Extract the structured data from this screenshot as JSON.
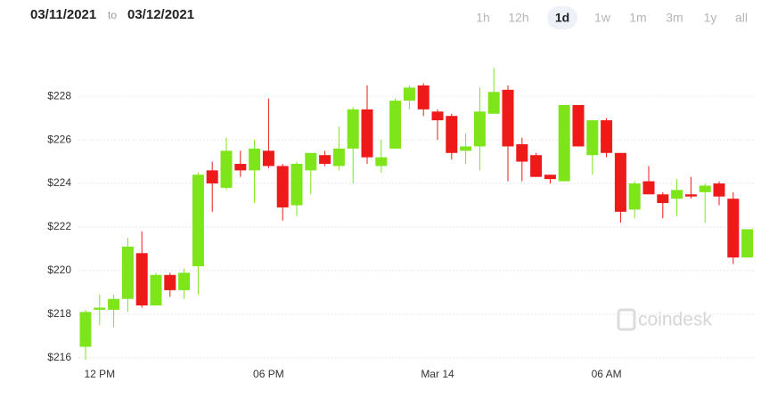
{
  "header": {
    "date_from": "03/11/2021",
    "date_sep": "to",
    "date_to": "03/12/2021",
    "ranges": [
      "1h",
      "12h",
      "1d",
      "1w",
      "1m",
      "3m",
      "1y",
      "all"
    ],
    "selected_range": 2
  },
  "watermark": "coindesk",
  "chart_data": {
    "type": "candlestick",
    "categories": [
      null,
      "12 PM",
      null,
      null,
      null,
      null,
      null,
      null,
      null,
      null,
      null,
      null,
      null,
      "06 PM",
      null,
      null,
      null,
      null,
      null,
      null,
      null,
      null,
      null,
      null,
      null,
      "Mar 14",
      null,
      null,
      null,
      null,
      null,
      null,
      null,
      null,
      null,
      null,
      null,
      "06 AM",
      null,
      null,
      null,
      null,
      null,
      null,
      null,
      null,
      null,
      null
    ],
    "open": [
      216.5,
      218.2,
      218.2,
      218.7,
      220.8,
      218.4,
      219.8,
      219.1,
      220.2,
      224.6,
      223.8,
      224.9,
      224.6,
      225.5,
      224.8,
      223.0,
      224.6,
      225.3,
      224.8,
      225.6,
      227.4,
      224.8,
      225.6,
      227.8,
      228.5,
      227.3,
      227.1,
      225.5,
      225.7,
      227.2,
      228.3,
      225.8,
      225.3,
      224.4,
      224.1,
      227.6,
      225.3,
      226.9,
      225.4,
      222.8,
      224.1,
      223.5,
      223.3,
      223.5,
      223.6,
      224.0,
      223.3,
      220.6
    ],
    "high": [
      218.2,
      218.9,
      218.9,
      221.5,
      221.8,
      219.9,
      219.9,
      220.1,
      224.5,
      225.0,
      226.1,
      225.5,
      226.0,
      227.9,
      224.9,
      225.0,
      225.4,
      225.5,
      226.6,
      227.5,
      228.5,
      226.0,
      227.9,
      228.5,
      228.6,
      227.4,
      227.2,
      226.3,
      228.4,
      229.3,
      228.5,
      226.1,
      225.4,
      224.4,
      227.6,
      227.6,
      226.9,
      227.0,
      225.4,
      224.1,
      224.8,
      223.6,
      224.2,
      224.3,
      224.0,
      224.1,
      223.6,
      221.9
    ],
    "low": [
      215.9,
      217.5,
      217.4,
      218.1,
      218.3,
      218.4,
      218.8,
      218.7,
      218.9,
      222.7,
      223.7,
      224.3,
      223.1,
      224.7,
      222.3,
      222.5,
      223.5,
      224.8,
      224.6,
      224.0,
      224.9,
      224.5,
      225.6,
      227.4,
      227.1,
      226.0,
      225.1,
      224.9,
      224.6,
      227.3,
      224.1,
      224.1,
      224.3,
      224.0,
      224.1,
      225.7,
      224.4,
      225.2,
      222.2,
      222.4,
      223.5,
      222.4,
      222.5,
      223.3,
      222.2,
      223.0,
      220.3,
      220.6
    ],
    "close": [
      218.1,
      218.3,
      218.7,
      221.1,
      218.4,
      219.8,
      219.1,
      219.9,
      224.4,
      224.0,
      225.5,
      224.6,
      225.6,
      224.8,
      222.9,
      224.9,
      225.4,
      224.9,
      225.6,
      227.4,
      225.2,
      225.2,
      227.8,
      228.4,
      227.4,
      226.9,
      225.4,
      225.7,
      227.3,
      228.2,
      225.7,
      225.0,
      224.3,
      224.2,
      227.6,
      225.7,
      226.9,
      225.4,
      222.7,
      224.0,
      223.5,
      223.1,
      223.7,
      223.4,
      223.9,
      223.4,
      220.6,
      221.9
    ],
    "up_color": "#7ee51b",
    "down_color": "#ee1a1a",
    "ylim": [
      215.5,
      230.5
    ],
    "yticks": [
      {
        "value": 216,
        "label": "$216"
      },
      {
        "value": 218,
        "label": "$218"
      },
      {
        "value": 220,
        "label": "$220"
      },
      {
        "value": 222,
        "label": "$222"
      },
      {
        "value": 224,
        "label": "$224"
      },
      {
        "value": 226,
        "label": "$226"
      },
      {
        "value": 228,
        "label": "$228"
      }
    ],
    "grid": true
  }
}
